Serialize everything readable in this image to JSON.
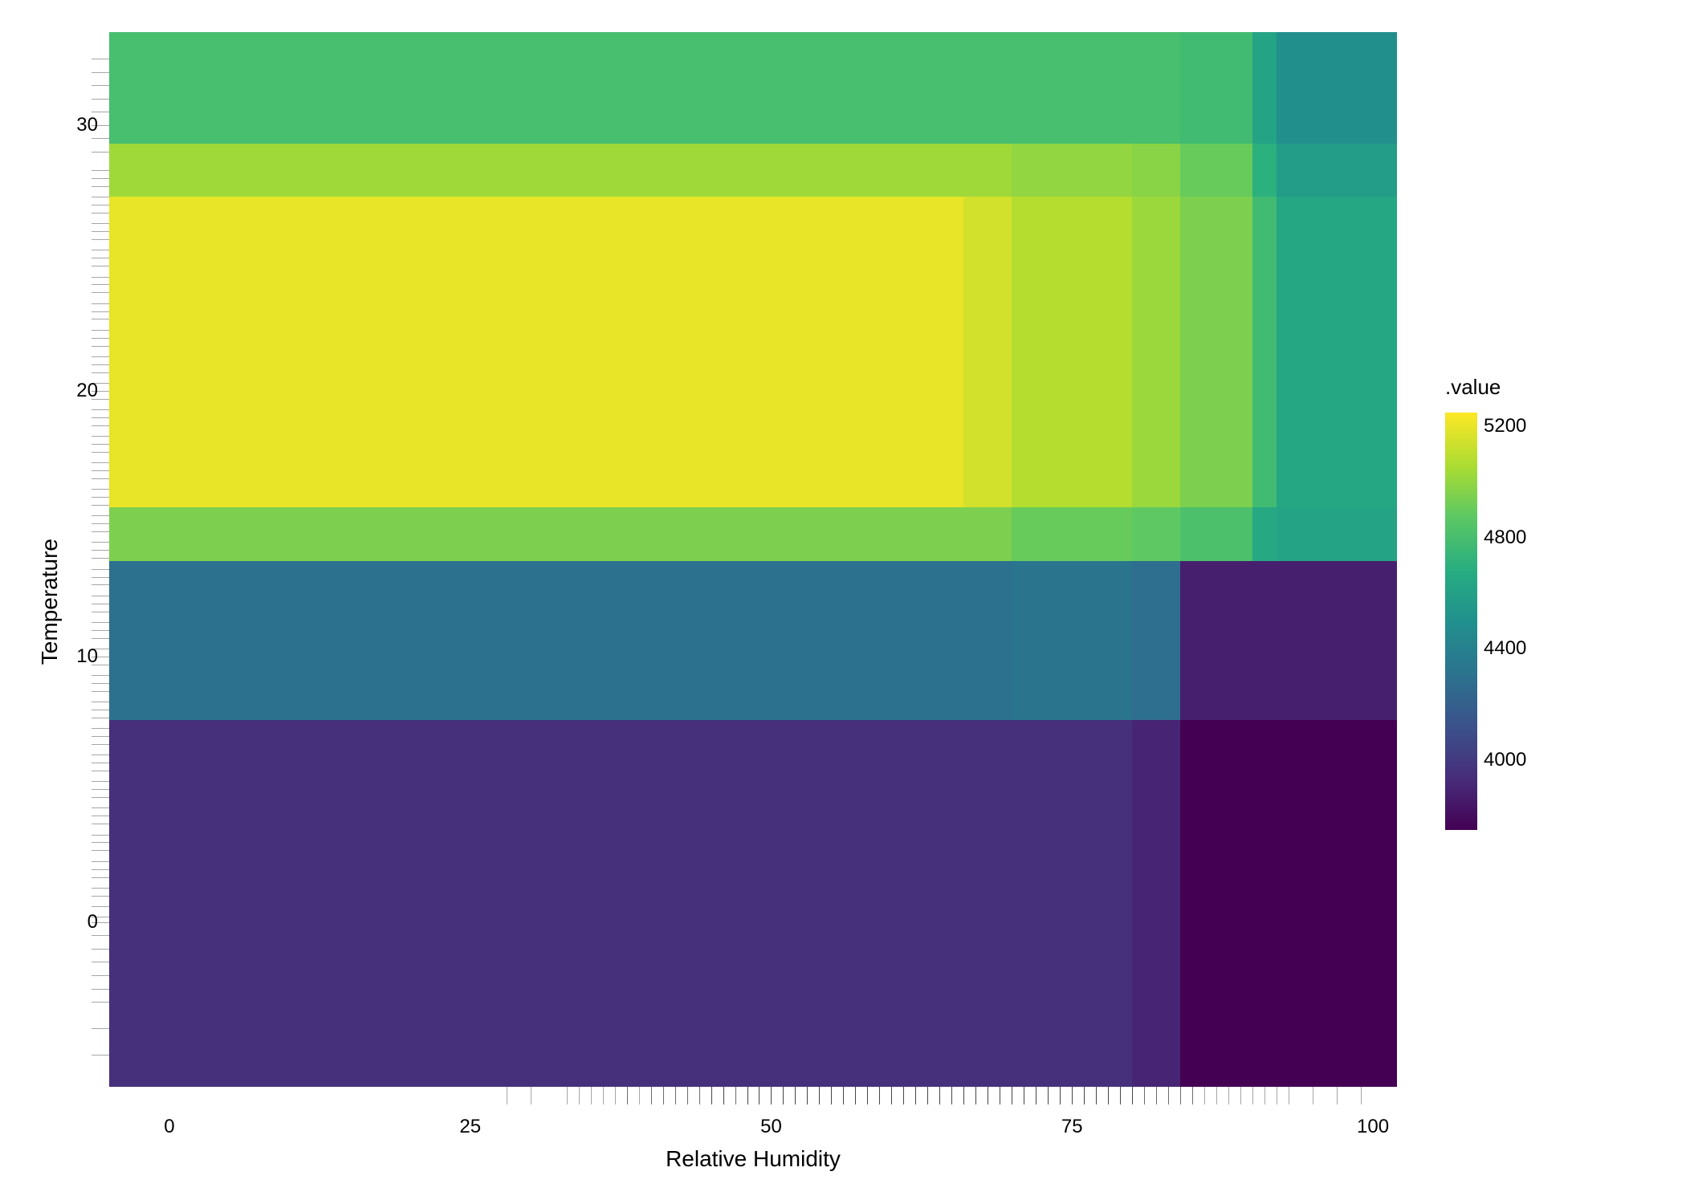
{
  "chart": {
    "type": "heatmap",
    "xlabel": "Relative Humidity",
    "ylabel": "Temperature",
    "label_fontsize": 28,
    "tick_fontsize": 24,
    "panel_bg": "#ebebeb",
    "grid_color": "#ffffff",
    "x": {
      "min": -5,
      "max": 102,
      "ticks": [
        0,
        25,
        50,
        75,
        100
      ]
    },
    "y": {
      "min": -6.2,
      "max": 33.5,
      "ticks": [
        0,
        10,
        20,
        30
      ]
    },
    "x_breaks": [
      -5,
      66,
      70,
      80,
      84,
      90,
      92,
      102
    ],
    "y_breaks": [
      -6.2,
      5.8,
      7.6,
      11.5,
      13.6,
      15.6,
      27.3,
      29.3,
      33.5
    ],
    "values": {
      "r0": [
        3950,
        3950,
        3950,
        3900,
        3750,
        3750,
        3750
      ],
      "r1": [
        3950,
        3950,
        3950,
        3900,
        3750,
        3750,
        3750
      ],
      "r2": [
        4300,
        4300,
        4320,
        4280,
        3880,
        3880,
        3880
      ],
      "r3": [
        4300,
        4300,
        4320,
        4280,
        3880,
        3880,
        3880
      ],
      "r4": [
        4950,
        4950,
        4900,
        4880,
        4820,
        4650,
        4620
      ],
      "r5": [
        5200,
        5150,
        5080,
        5020,
        4950,
        4780,
        4640
      ],
      "r6": [
        5030,
        5030,
        5000,
        4980,
        4900,
        4700,
        4580
      ],
      "r7": [
        4800,
        4800,
        4800,
        4800,
        4780,
        4620,
        4500
      ]
    },
    "legend": {
      "title": ".value",
      "min": 3750,
      "max": 5250,
      "ticks": [
        4000,
        4400,
        4800,
        5200
      ],
      "gradient_stops": [
        {
          "t": 0.0,
          "c": "#440154"
        },
        {
          "t": 0.12,
          "c": "#472c7a"
        },
        {
          "t": 0.25,
          "c": "#3b528b"
        },
        {
          "t": 0.37,
          "c": "#2c728e"
        },
        {
          "t": 0.5,
          "c": "#21908d"
        },
        {
          "t": 0.62,
          "c": "#27ad81"
        },
        {
          "t": 0.75,
          "c": "#5cc863"
        },
        {
          "t": 0.87,
          "c": "#aadc32"
        },
        {
          "t": 1.0,
          "c": "#fde725"
        }
      ]
    },
    "rug_x": [
      28,
      30,
      33,
      34,
      35,
      36,
      37,
      38,
      38,
      39,
      40,
      40,
      41,
      41,
      42,
      42,
      43,
      43,
      44,
      44,
      45,
      45,
      45,
      46,
      46,
      46,
      47,
      47,
      48,
      48,
      48,
      49,
      49,
      49,
      50,
      50,
      50,
      51,
      51,
      51,
      52,
      52,
      52,
      53,
      53,
      53,
      54,
      54,
      54,
      55,
      55,
      55,
      56,
      56,
      56,
      57,
      57,
      57,
      58,
      58,
      58,
      59,
      59,
      59,
      60,
      60,
      60,
      61,
      61,
      61,
      62,
      62,
      62,
      63,
      63,
      63,
      64,
      64,
      64,
      65,
      65,
      65,
      66,
      66,
      66,
      67,
      67,
      67,
      68,
      68,
      68,
      69,
      69,
      69,
      70,
      70,
      70,
      71,
      71,
      71,
      72,
      72,
      72,
      73,
      73,
      73,
      74,
      74,
      74,
      75,
      75,
      75,
      76,
      76,
      76,
      77,
      77,
      77,
      78,
      78,
      78,
      79,
      79,
      79,
      80,
      80,
      80,
      81,
      81,
      82,
      82,
      83,
      83,
      84,
      84,
      85,
      85,
      86,
      87,
      88,
      89,
      90,
      91,
      92,
      93,
      95,
      97,
      99
    ],
    "rug_y": [
      -5.0,
      -4.0,
      -3.0,
      -2.5,
      -2.0,
      -1.5,
      -1.0,
      -0.5,
      0.0,
      0.2,
      0.6,
      1.0,
      1.3,
      1.7,
      2.0,
      2.3,
      2.7,
      3.0,
      3.3,
      3.7,
      4.0,
      4.3,
      4.7,
      5.0,
      5.3,
      5.7,
      6.0,
      6.3,
      6.7,
      7.0,
      7.3,
      7.7,
      8.0,
      8.3,
      8.7,
      9.0,
      9.3,
      9.7,
      10.0,
      10.3,
      10.7,
      11.0,
      11.3,
      11.7,
      12.0,
      12.3,
      12.7,
      13.0,
      13.3,
      13.7,
      14.0,
      14.3,
      14.7,
      15.0,
      15.3,
      15.7,
      16.0,
      16.3,
      16.7,
      17.0,
      17.3,
      17.7,
      18.0,
      18.3,
      18.7,
      19.0,
      19.3,
      19.7,
      20.0,
      20.3,
      20.7,
      21.0,
      21.3,
      21.7,
      22.0,
      22.3,
      22.7,
      23.0,
      23.3,
      23.7,
      24.0,
      24.3,
      24.7,
      25.0,
      25.3,
      25.7,
      26.0,
      26.3,
      26.7,
      27.0,
      27.3,
      27.7,
      28.0,
      28.3,
      29.0,
      29.5,
      30.0,
      30.5,
      31.0,
      31.5,
      32.0,
      32.5
    ]
  }
}
